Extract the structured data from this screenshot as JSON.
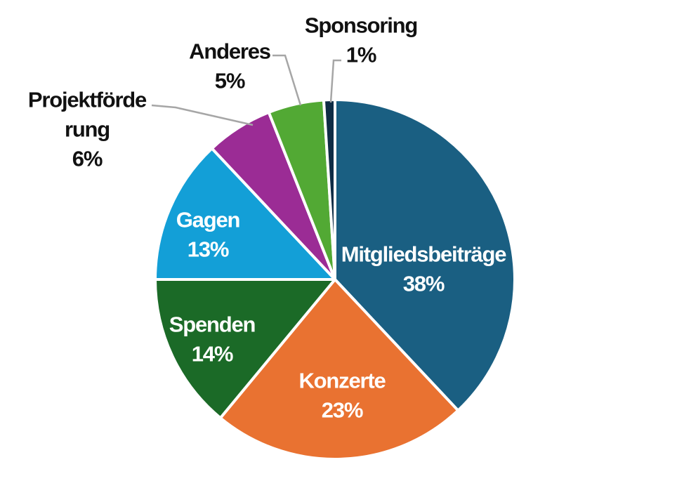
{
  "chart_data": {
    "type": "pie",
    "title": "",
    "start_angle_deg": 0,
    "direction": "clockwise",
    "slices": [
      {
        "label": "Mitgliedsbeiträge",
        "value": 38,
        "value_label": "38%",
        "color": "#1a5f82",
        "label_inside": true
      },
      {
        "label": "Konzerte",
        "value": 23,
        "value_label": "23%",
        "color": "#e97231",
        "label_inside": true
      },
      {
        "label": "Spenden",
        "value": 14,
        "value_label": "14%",
        "color": "#1b6a27",
        "label_inside": true
      },
      {
        "label": "Gagen",
        "value": 13,
        "value_label": "13%",
        "color": "#139fd7",
        "label_inside": true
      },
      {
        "label": "Projektförderung",
        "label_lines": [
          "Projektförde",
          "rung"
        ],
        "value": 6,
        "value_label": "6%",
        "color": "#9b2c95",
        "label_inside": false
      },
      {
        "label": "Anderes",
        "value": 5,
        "value_label": "5%",
        "color": "#52a934",
        "label_inside": false
      },
      {
        "label": "Sponsoring",
        "value": 1,
        "value_label": "1%",
        "color": "#0e2c45",
        "label_inside": false
      }
    ]
  }
}
